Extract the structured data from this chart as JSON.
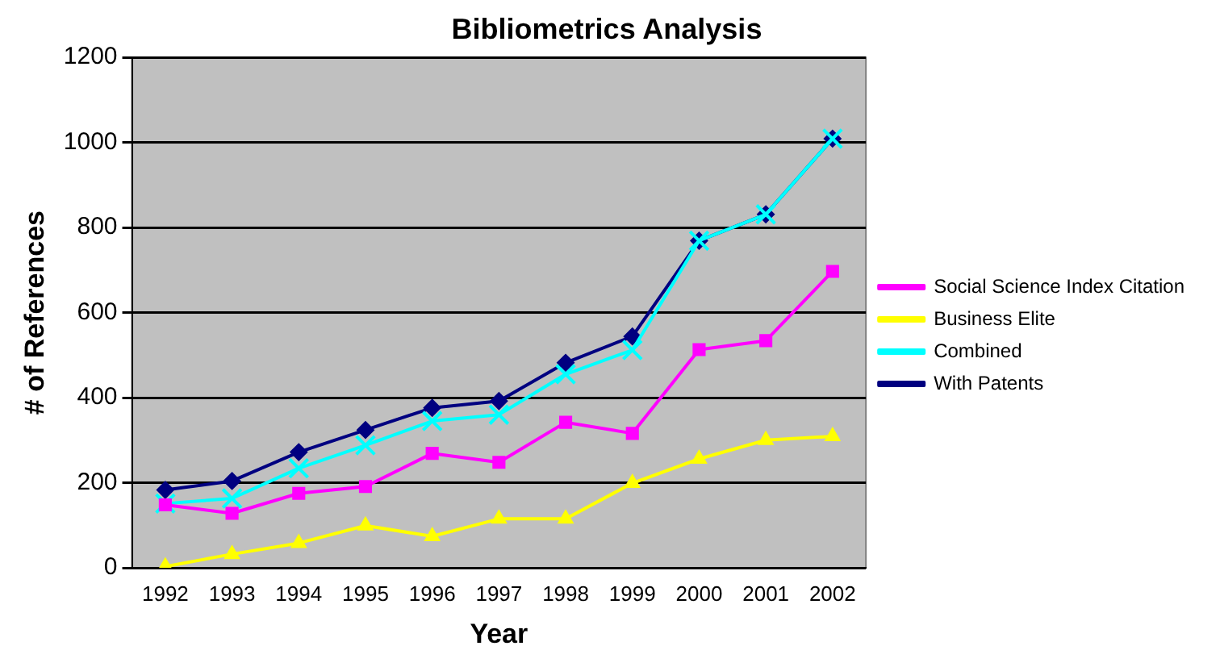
{
  "chart_data": {
    "type": "line",
    "title": "Bibliometrics Analysis",
    "xlabel": "Year",
    "ylabel": "# of References",
    "categories": [
      "1992",
      "1993",
      "1994",
      "1995",
      "1996",
      "1997",
      "1998",
      "1999",
      "2000",
      "2001",
      "2002"
    ],
    "ylim": [
      0,
      1200
    ],
    "yticks": [
      0,
      200,
      400,
      600,
      800,
      1000,
      1200
    ],
    "grid": "y",
    "legend": "right",
    "series": [
      {
        "name": "Social Science Index Citation",
        "color": "#ff00ff",
        "marker": "square",
        "values": [
          148,
          128,
          175,
          191,
          269,
          248,
          342,
          316,
          513,
          534,
          697
        ]
      },
      {
        "name": "Business Elite",
        "color": "#ffff00",
        "marker": "triangle",
        "values": [
          3,
          32,
          58,
          99,
          74,
          115,
          115,
          199,
          256,
          300,
          309
        ]
      },
      {
        "name": "Combined",
        "color": "#00ffff",
        "marker": "cross",
        "values": [
          151,
          163,
          234,
          288,
          345,
          360,
          455,
          512,
          769,
          831,
          1009
        ]
      },
      {
        "name": "With Patents",
        "color": "#000080",
        "marker": "diamond",
        "values": [
          183,
          204,
          272,
          324,
          376,
          392,
          482,
          544,
          769,
          831,
          1009
        ]
      }
    ]
  }
}
